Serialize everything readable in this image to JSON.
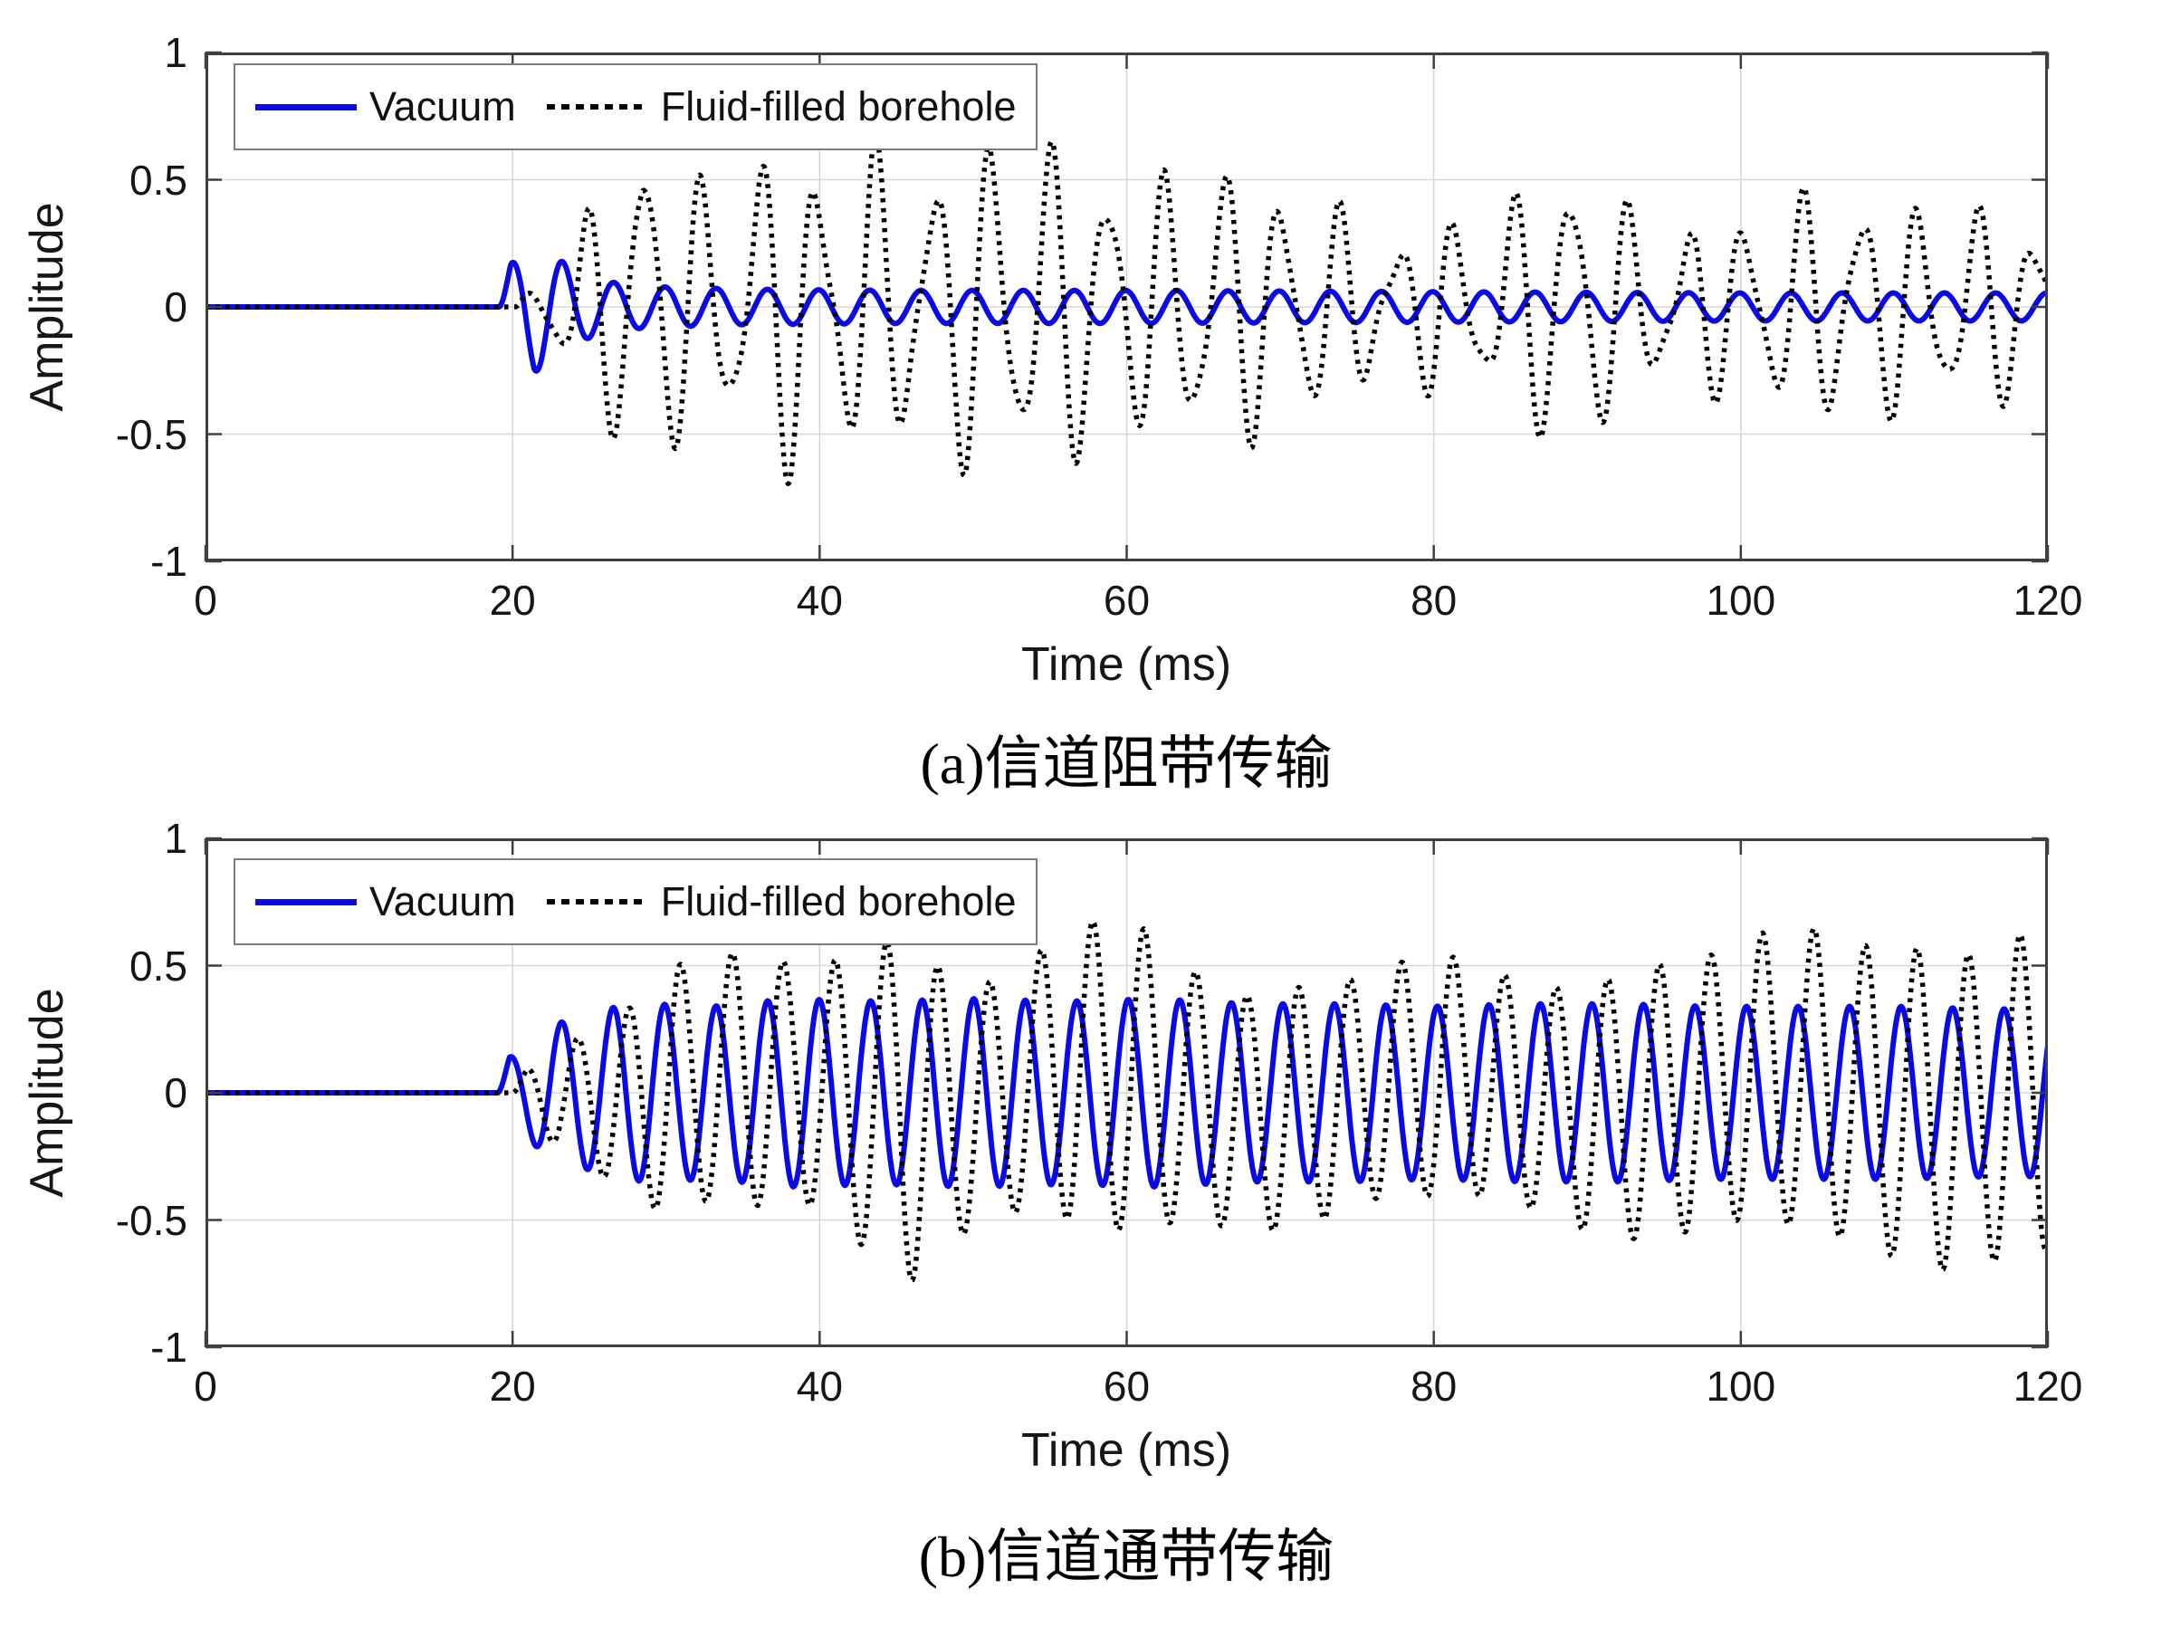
{
  "figure": {
    "background": "#ffffff"
  },
  "chart_data": [
    {
      "id": "a",
      "type": "line",
      "caption_prefix": "(a)",
      "caption_text": "信道阻带传输",
      "xlabel": "Time (ms)",
      "ylabel": "Amplitude",
      "xlim": [
        0,
        120
      ],
      "ylim": [
        -1,
        1
      ],
      "x_ticks": [
        "0",
        "20",
        "40",
        "60",
        "80",
        "100",
        "120"
      ],
      "x_tick_values": [
        0,
        20,
        40,
        60,
        80,
        100,
        120
      ],
      "y_ticks": [
        "1",
        "0.5",
        "0",
        "-0.5",
        "-1"
      ],
      "y_tick_values": [
        1,
        0.5,
        0,
        -0.5,
        -1
      ],
      "grid": true,
      "legend_position": "top-left",
      "legend_entries": [
        {
          "label": "Vacuum",
          "style": "solid",
          "color": "#0a0ae6"
        },
        {
          "label": "Fluid-filled borehole",
          "style": "dotted",
          "color": "#000000"
        }
      ],
      "series": [
        {
          "name": "Vacuum",
          "color": "#0a0ae6",
          "style": "solid",
          "line_width": 6,
          "components": [
            {
              "freq_per_ms": 0.3,
              "onset_ms": 19.1,
              "phase_rad": 0,
              "envelope": [
                [
                  19.1,
                  0
                ],
                [
                  19.9,
                  0.17
                ],
                [
                  21.4,
                  0.26
                ],
                [
                  22.7,
                  0.2
                ],
                [
                  24.2,
                  0.14
                ],
                [
                  26,
                  0.1
                ],
                [
                  29,
                  0.08
                ],
                [
                  35,
                  0.07
                ],
                [
                  45,
                  0.065
                ],
                [
                  60,
                  0.065
                ],
                [
                  80,
                  0.06
                ],
                [
                  100,
                  0.055
                ],
                [
                  120,
                  0.055
                ]
              ]
            }
          ]
        },
        {
          "name": "Fluid-filled borehole",
          "color": "#000000",
          "style": "dotted",
          "line_width": 5.5,
          "components": [
            {
              "freq_per_ms": 0.265,
              "onset_ms": 20.2,
              "phase_rad": 0.2,
              "envelope": [
                [
                  20.2,
                  0
                ],
                [
                  22,
                  0.12
                ],
                [
                  24,
                  0.22
                ],
                [
                  26.5,
                  0.45
                ],
                [
                  28.5,
                  0.6
                ],
                [
                  31,
                  0.45
                ],
                [
                  33.5,
                  0.38
                ],
                [
                  36,
                  0.5
                ],
                [
                  38.5,
                  0.58
                ],
                [
                  41,
                  0.42
                ],
                [
                  43.5,
                  0.55
                ],
                [
                  46,
                  0.42
                ],
                [
                  48.5,
                  0.5
                ],
                [
                  51,
                  0.58
                ],
                [
                  53.5,
                  0.52
                ],
                [
                  56,
                  0.55
                ],
                [
                  58.5,
                  0.48
                ],
                [
                  61,
                  0.38
                ],
                [
                  63.5,
                  0.45
                ],
                [
                  66,
                  0.5
                ],
                [
                  68.5,
                  0.42
                ],
                [
                  71,
                  0.4
                ],
                [
                  73.5,
                  0.32
                ],
                [
                  76,
                  0.25
                ],
                [
                  78.5,
                  0.24
                ],
                [
                  81,
                  0.28
                ],
                [
                  83.5,
                  0.3
                ],
                [
                  86,
                  0.38
                ],
                [
                  88.5,
                  0.5
                ],
                [
                  91,
                  0.4
                ],
                [
                  93.5,
                  0.28
                ],
                [
                  96,
                  0.26
                ],
                [
                  98.5,
                  0.28
                ],
                [
                  101,
                  0.32
                ],
                [
                  103.5,
                  0.35
                ],
                [
                  106,
                  0.38
                ],
                [
                  108.5,
                  0.38
                ],
                [
                  111,
                  0.32
                ],
                [
                  113.5,
                  0.35
                ],
                [
                  116,
                  0.32
                ],
                [
                  118.5,
                  0.3
                ],
                [
                  120,
                  0.25
                ]
              ]
            },
            {
              "freq_per_ms": 0.43,
              "onset_ms": 20.2,
              "phase_rad": 1.0,
              "envelope": [
                [
                  20.2,
                  0
                ],
                [
                  24,
                  0.08
                ],
                [
                  28,
                  0.14
                ],
                [
                  34,
                  0.12
                ],
                [
                  40,
                  0.15
                ],
                [
                  46,
                  0.13
                ],
                [
                  52,
                  0.15
                ],
                [
                  58,
                  0.13
                ],
                [
                  64,
                  0.14
                ],
                [
                  70,
                  0.12
                ],
                [
                  76,
                  0.1
                ],
                [
                  82,
                  0.1
                ],
                [
                  88,
                  0.13
                ],
                [
                  94,
                  0.1
                ],
                [
                  100,
                  0.1
                ],
                [
                  106,
                  0.12
                ],
                [
                  112,
                  0.11
                ],
                [
                  118,
                  0.1
                ],
                [
                  120,
                  0.1
                ]
              ]
            }
          ]
        }
      ]
    },
    {
      "id": "b",
      "type": "line",
      "caption_prefix": "(b)",
      "caption_text": "信道通带传输",
      "xlabel": "Time (ms)",
      "ylabel": "Amplitude",
      "xlim": [
        0,
        120
      ],
      "ylim": [
        -1,
        1
      ],
      "x_ticks": [
        "0",
        "20",
        "40",
        "60",
        "80",
        "100",
        "120"
      ],
      "x_tick_values": [
        0,
        20,
        40,
        60,
        80,
        100,
        120
      ],
      "y_ticks": [
        "1",
        "0.5",
        "0",
        "-0.5",
        "-1"
      ],
      "y_tick_values": [
        1,
        0.5,
        0,
        -0.5,
        -1
      ],
      "grid": true,
      "legend_position": "top-left",
      "legend_entries": [
        {
          "label": "Vacuum",
          "style": "solid",
          "color": "#0a0ae6"
        },
        {
          "label": "Fluid-filled borehole",
          "style": "dotted",
          "color": "#000000"
        }
      ],
      "series": [
        {
          "name": "Vacuum",
          "color": "#0a0ae6",
          "style": "solid",
          "line_width": 6,
          "components": [
            {
              "freq_per_ms": 0.298,
              "onset_ms": 19.0,
              "phase_rad": 0,
              "envelope": [
                [
                  19,
                  0
                ],
                [
                  19.8,
                  0.14
                ],
                [
                  20.8,
                  0.17
                ],
                [
                  22.6,
                  0.27
                ],
                [
                  24.8,
                  0.3
                ],
                [
                  26.8,
                  0.34
                ],
                [
                  29,
                  0.35
                ],
                [
                  33,
                  0.34
                ],
                [
                  38,
                  0.37
                ],
                [
                  44,
                  0.36
                ],
                [
                  50,
                  0.37
                ],
                [
                  56,
                  0.36
                ],
                [
                  62,
                  0.37
                ],
                [
                  68,
                  0.35
                ],
                [
                  74,
                  0.35
                ],
                [
                  80,
                  0.34
                ],
                [
                  86,
                  0.35
                ],
                [
                  92,
                  0.35
                ],
                [
                  98,
                  0.34
                ],
                [
                  104,
                  0.34
                ],
                [
                  110,
                  0.34
                ],
                [
                  116,
                  0.33
                ],
                [
                  120,
                  0.33
                ]
              ]
            }
          ]
        },
        {
          "name": "Fluid-filled borehole",
          "color": "#000000",
          "style": "dotted",
          "line_width": 5.5,
          "components": [
            {
              "freq_per_ms": 0.298,
              "onset_ms": 19.9,
              "phase_rad": -0.25,
              "envelope": [
                [
                  19.9,
                  0
                ],
                [
                  21,
                  0.1
                ],
                [
                  23,
                  0.2
                ],
                [
                  25.5,
                  0.28
                ],
                [
                  28,
                  0.38
                ],
                [
                  30.5,
                  0.5
                ],
                [
                  33,
                  0.46
                ],
                [
                  35.5,
                  0.52
                ],
                [
                  38,
                  0.45
                ],
                [
                  40.5,
                  0.5
                ],
                [
                  43,
                  0.58
                ],
                [
                  45.5,
                  0.7
                ],
                [
                  48,
                  0.55
                ],
                [
                  50.5,
                  0.46
                ],
                [
                  53,
                  0.48
                ],
                [
                  55.5,
                  0.55
                ],
                [
                  58,
                  0.6
                ],
                [
                  60.5,
                  0.62
                ],
                [
                  63,
                  0.52
                ],
                [
                  65.5,
                  0.48
                ],
                [
                  68,
                  0.45
                ],
                [
                  70.5,
                  0.48
                ],
                [
                  73,
                  0.46
                ],
                [
                  75.5,
                  0.44
                ],
                [
                  78,
                  0.46
                ],
                [
                  80.5,
                  0.48
                ],
                [
                  83,
                  0.45
                ],
                [
                  85.5,
                  0.44
                ],
                [
                  88,
                  0.45
                ],
                [
                  90.5,
                  0.5
                ],
                [
                  93,
                  0.52
                ],
                [
                  95.5,
                  0.55
                ],
                [
                  98,
                  0.52
                ],
                [
                  100.5,
                  0.56
                ],
                [
                  103,
                  0.58
                ],
                [
                  105.5,
                  0.6
                ],
                [
                  108,
                  0.58
                ],
                [
                  110.5,
                  0.62
                ],
                [
                  113,
                  0.63
                ],
                [
                  115.5,
                  0.6
                ],
                [
                  118,
                  0.64
                ],
                [
                  120,
                  0.63
                ]
              ]
            },
            {
              "freq_per_ms": 0.045,
              "onset_ms": 20,
              "phase_rad": 3.4,
              "envelope": [
                [
                  20,
                  0
                ],
                [
                  30,
                  0.06
                ],
                [
                  60,
                  0.08
                ],
                [
                  90,
                  0.06
                ],
                [
                  120,
                  0.07
                ]
              ]
            }
          ]
        }
      ]
    }
  ]
}
